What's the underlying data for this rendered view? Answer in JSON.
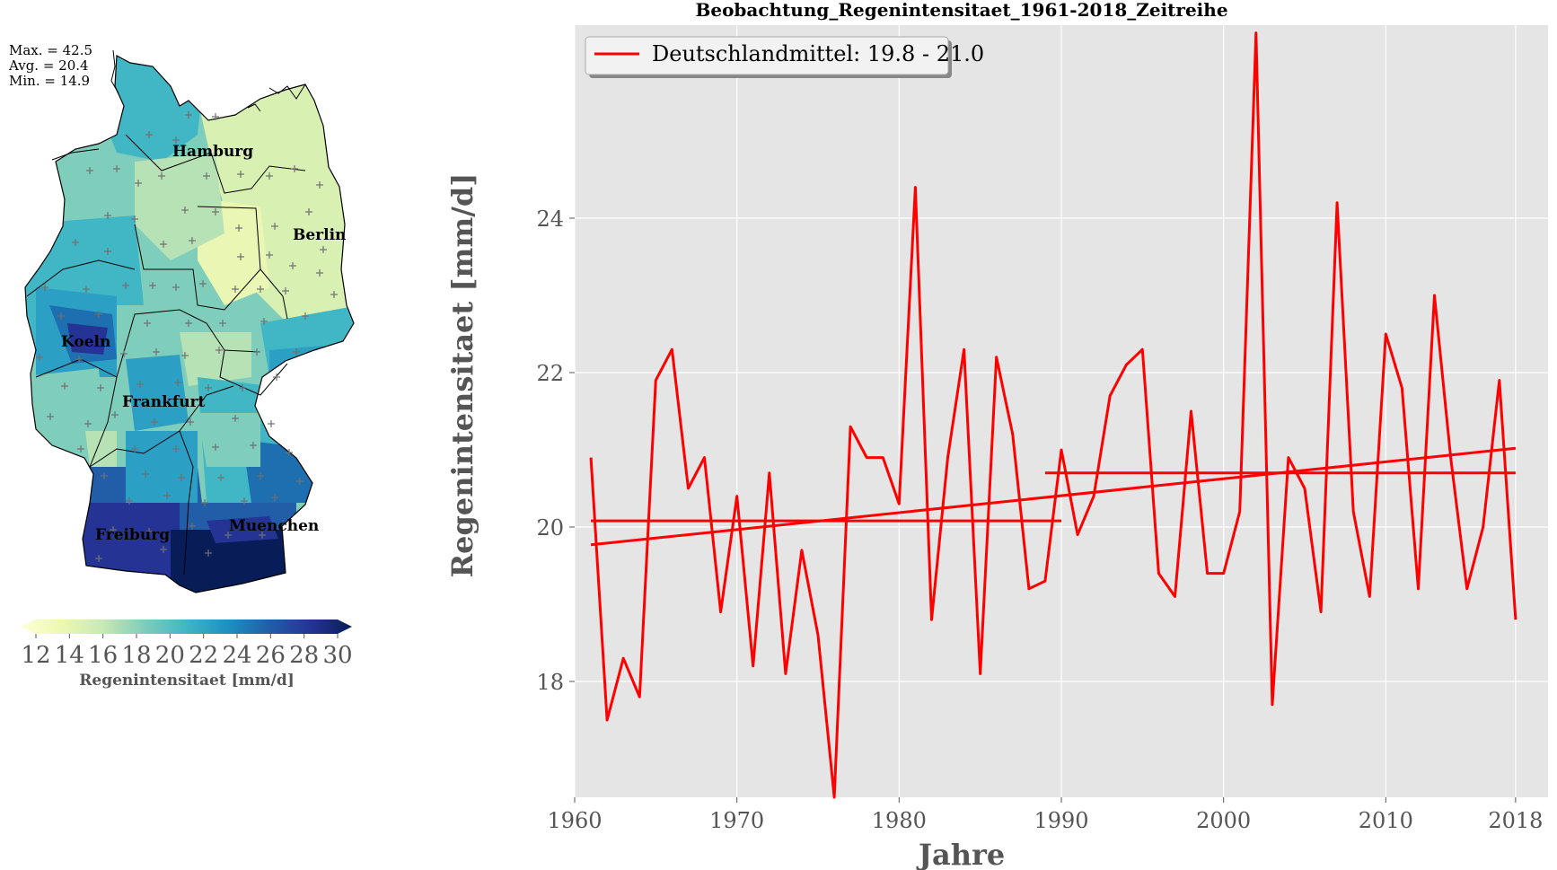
{
  "map_panel": {
    "stats": {
      "max": "Max. = 42.5",
      "avg": "Avg. = 20.4",
      "min": "Min. = 14.9"
    },
    "cities": [
      "Hamburg",
      "Berlin",
      "Koeln",
      "Frankfurt",
      "Freiburg",
      "Muenchen"
    ],
    "colorbar": {
      "ticks": [
        "12",
        "14",
        "16",
        "18",
        "20",
        "22",
        "24",
        "26",
        "28",
        "30"
      ],
      "label": "Regenintensitaet [mm/d]",
      "colormap": [
        "#ffffd9",
        "#edf8b1",
        "#c7e9b4",
        "#7fcdbb",
        "#41b6c4",
        "#1d91c0",
        "#225ea8",
        "#253494",
        "#081d58"
      ]
    }
  },
  "chart_data": {
    "type": "line",
    "title": "Beobachtung_Regenintensitaet_1961-2018_Zeitreihe",
    "xlabel": "Jahre",
    "ylabel": "Regenintensitaet [mm/d]",
    "xlim": [
      1960,
      2020
    ],
    "ylim": [
      16.5,
      26.5
    ],
    "xticks": [
      "1960",
      "1970",
      "1980",
      "1990",
      "2000",
      "2010",
      "2018"
    ],
    "yticks": [
      "18",
      "20",
      "22",
      "24"
    ],
    "grid": true,
    "legend": {
      "position": "top-left",
      "entries": [
        "Deutschlandmittel: 19.8 - 21.0"
      ]
    },
    "colors": {
      "series": "#ff0000",
      "plot_background": "#e5e5e5"
    },
    "series": [
      {
        "name": "Deutschlandmittel: 19.8 - 21.0",
        "x": [
          1961,
          1962,
          1963,
          1964,
          1965,
          1966,
          1967,
          1968,
          1969,
          1970,
          1971,
          1972,
          1973,
          1974,
          1975,
          1976,
          1977,
          1978,
          1979,
          1980,
          1981,
          1982,
          1983,
          1984,
          1985,
          1986,
          1987,
          1988,
          1989,
          1990,
          1991,
          1992,
          1993,
          1994,
          1995,
          1996,
          1997,
          1998,
          1999,
          2000,
          2001,
          2002,
          2003,
          2004,
          2005,
          2006,
          2007,
          2008,
          2009,
          2010,
          2011,
          2012,
          2013,
          2014,
          2015,
          2016,
          2017,
          2018
        ],
        "values": [
          20.9,
          17.5,
          18.3,
          17.8,
          21.9,
          22.3,
          20.5,
          20.9,
          18.9,
          20.4,
          18.2,
          20.7,
          18.1,
          19.7,
          18.6,
          16.5,
          21.3,
          20.9,
          20.9,
          20.3,
          24.4,
          18.8,
          20.9,
          22.3,
          18.1,
          22.2,
          21.2,
          19.2,
          19.3,
          21.0,
          19.9,
          20.4,
          21.7,
          22.1,
          22.3,
          19.4,
          19.1,
          21.5,
          19.4,
          19.4,
          20.2,
          26.4,
          17.7,
          20.9,
          20.5,
          18.9,
          24.2,
          20.2,
          19.1,
          22.5,
          21.8,
          19.2,
          23.0,
          20.9,
          19.2,
          20.0,
          21.9,
          18.8
        ]
      },
      {
        "name": "",
        "kind": "trend",
        "x": [
          1961,
          2018
        ],
        "values": [
          19.77,
          21.02
        ]
      },
      {
        "name": "",
        "kind": "period-mean",
        "x": [
          1961,
          1990
        ],
        "values": [
          20.08,
          20.08
        ]
      },
      {
        "name": "",
        "kind": "period-mean",
        "x": [
          1989,
          2018
        ],
        "values": [
          20.7,
          20.7
        ]
      }
    ]
  }
}
